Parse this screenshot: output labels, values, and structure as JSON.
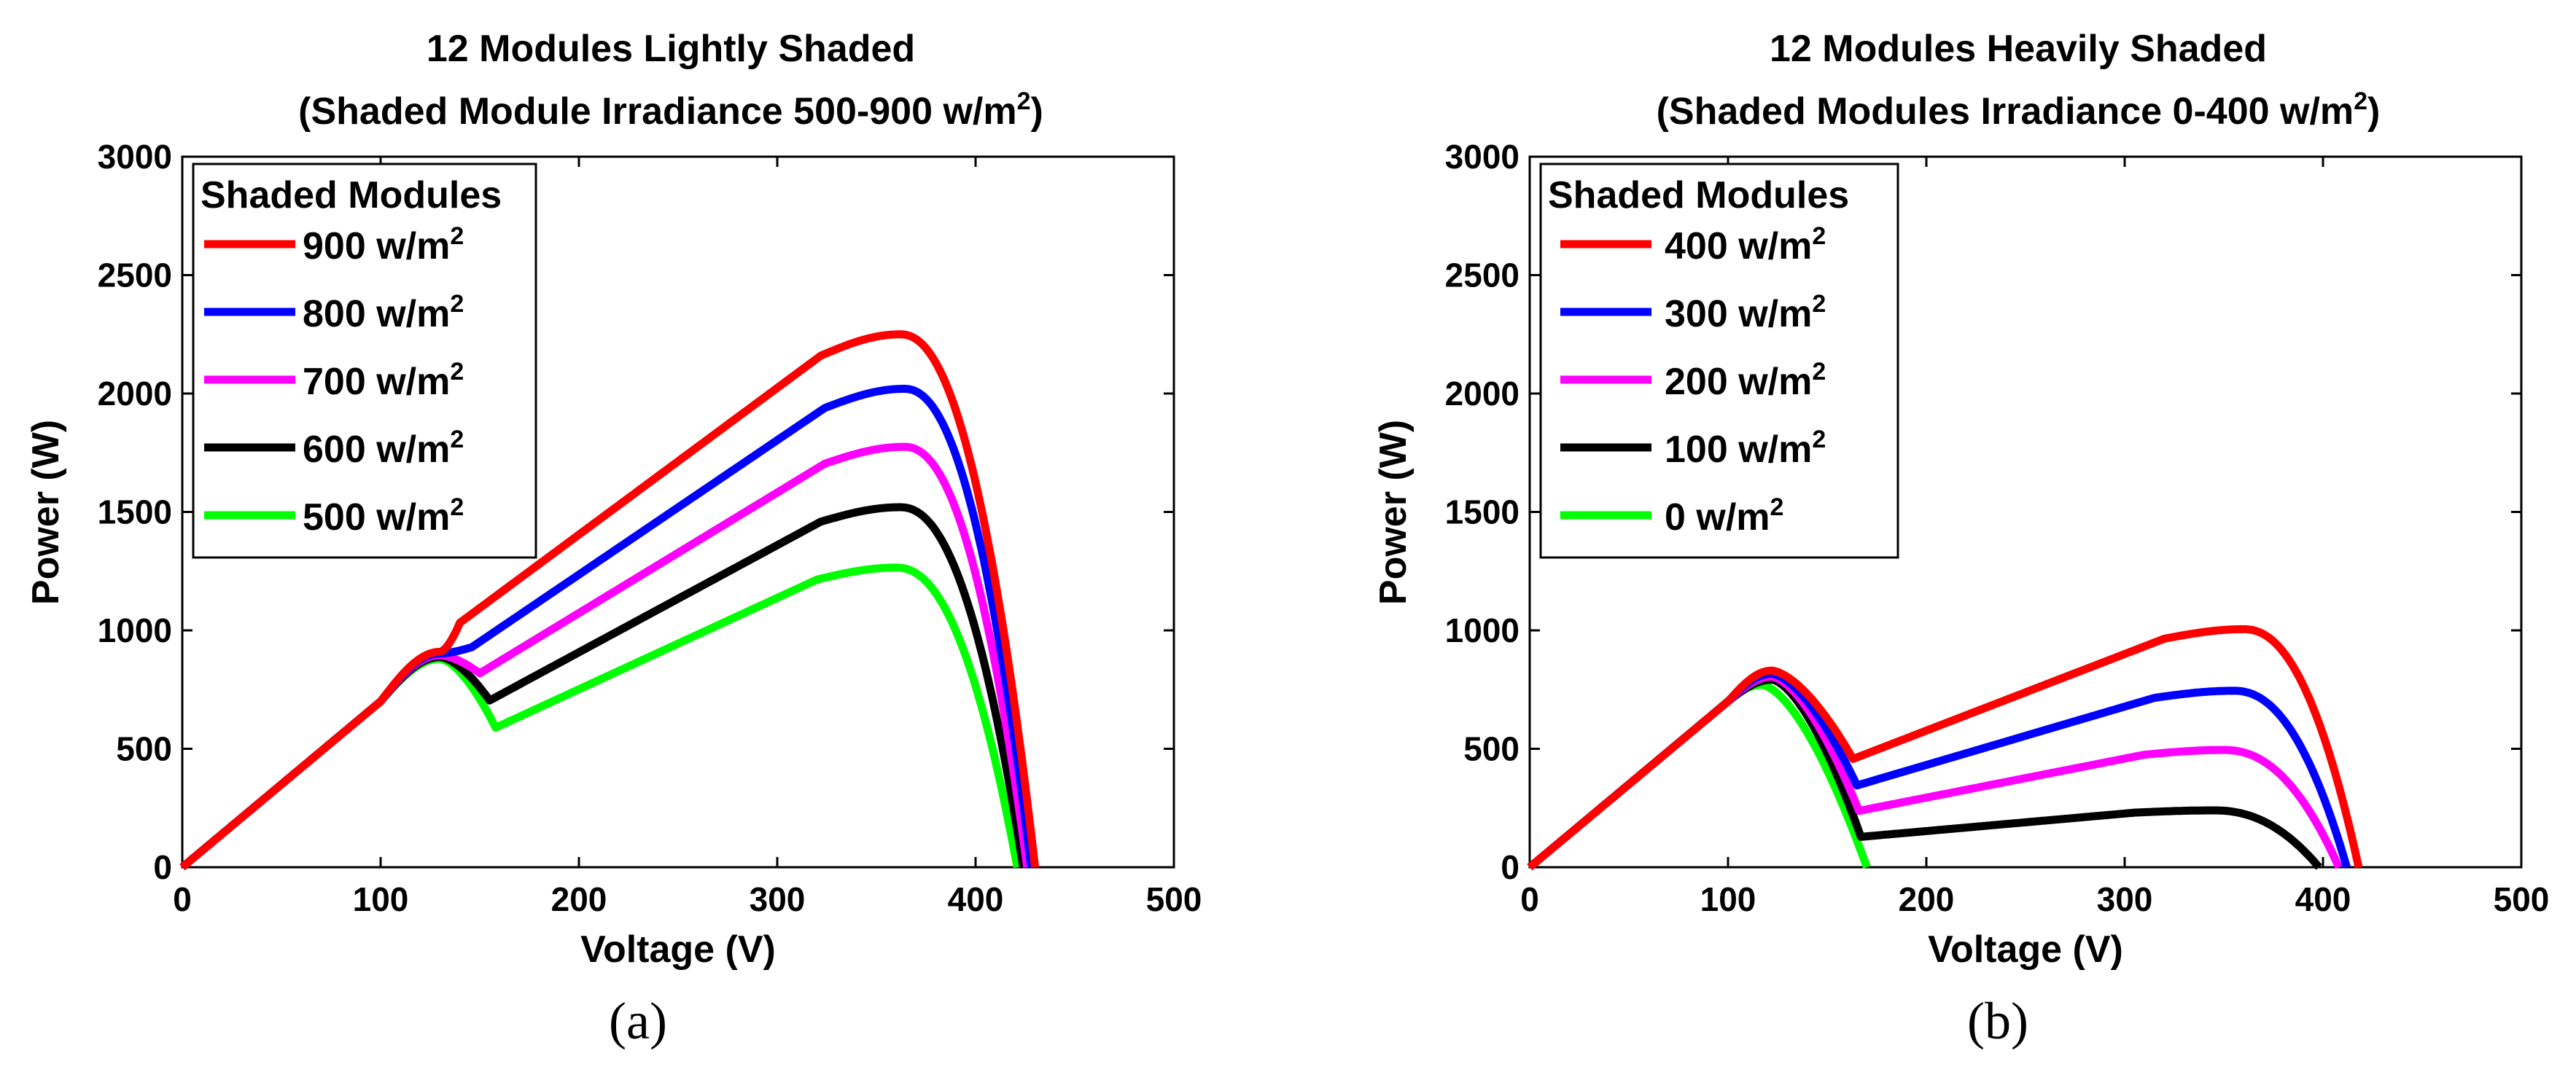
{
  "colors": {
    "red": "#ff0000",
    "blue": "#0000ff",
    "magenta": "#ff00ff",
    "black": "#000000",
    "green": "#00ff00"
  },
  "chart_data": [
    {
      "type": "line",
      "title_line1": "12 Modules Lightly Shaded",
      "title_line2": "(Shaded Module Irradiance 500-900 w/m",
      "title_sup": "2",
      "title_end": ")",
      "xlabel": "Voltage (V)",
      "ylabel": "Power (W)",
      "xlim": [
        0,
        500
      ],
      "ylim": [
        0,
        3000
      ],
      "xticks": [
        "0",
        "100",
        "200",
        "300",
        "400",
        "500"
      ],
      "yticks": [
        "0",
        "500",
        "1000",
        "1500",
        "2000",
        "2500",
        "3000"
      ],
      "legend_title": "Shaded Modules",
      "legend_placement": "top-left",
      "caption": "(a)",
      "series": [
        {
          "name": "900 w/m",
          "sup": "2",
          "color": "#ff0000",
          "kink_v": 140,
          "mpp_v": 362,
          "mpp_p": 2250,
          "voc": 430
        },
        {
          "name": "800 w/m",
          "sup": "2",
          "color": "#0000ff",
          "kink_v": 146,
          "mpp_v": 364,
          "mpp_p": 2020,
          "voc": 428
        },
        {
          "name": "700 w/m",
          "sup": "2",
          "color": "#ff00ff",
          "kink_v": 150,
          "mpp_v": 364,
          "mpp_p": 1775,
          "voc": 426
        },
        {
          "name": "600 w/m",
          "sup": "2",
          "color": "#000000",
          "kink_v": 155,
          "mpp_v": 362,
          "mpp_p": 1520,
          "voc": 424
        },
        {
          "name": "500 w/m",
          "sup": "2",
          "color": "#00ff00",
          "kink_v": 158,
          "mpp_v": 360,
          "mpp_p": 1265,
          "voc": 421
        }
      ]
    },
    {
      "type": "line",
      "title_line1": "12 Modules Heavily Shaded",
      "title_line2": "(Shaded Modules Irradiance 0-400 w/m",
      "title_sup": "2",
      "title_end": ")",
      "xlabel": "Voltage (V)",
      "ylabel": "Power (W)",
      "xlim": [
        0,
        500
      ],
      "ylim": [
        0,
        3000
      ],
      "xticks": [
        "0",
        "100",
        "200",
        "300",
        "400",
        "500"
      ],
      "yticks": [
        "0",
        "500",
        "1000",
        "1500",
        "2000",
        "2500",
        "3000"
      ],
      "legend_title": "Shaded Modules",
      "legend_placement": "top-left",
      "caption": "(b)",
      "series": [
        {
          "name": "400 w/m",
          "sup": "2",
          "color": "#ff0000",
          "kink_v": 163,
          "mpp_v": 360,
          "mpp_p": 1005,
          "voc": 418
        },
        {
          "name": "300 w/m",
          "sup": "2",
          "color": "#0000ff",
          "kink_v": 165,
          "mpp_v": 355,
          "mpp_p": 745,
          "voc": 412
        },
        {
          "name": "200 w/m",
          "sup": "2",
          "color": "#ff00ff",
          "kink_v": 166,
          "mpp_v": 350,
          "mpp_p": 495,
          "voc": 408
        },
        {
          "name": "100 w/m",
          "sup": "2",
          "color": "#000000",
          "kink_v": 167,
          "mpp_v": 345,
          "mpp_p": 240,
          "voc": 398
        },
        {
          "name": "0 w/m",
          "sup": "2",
          "color": "#00ff00",
          "kink_v": 170,
          "mpp_v": 117,
          "mpp_p": 770,
          "voc": 170
        }
      ]
    }
  ]
}
